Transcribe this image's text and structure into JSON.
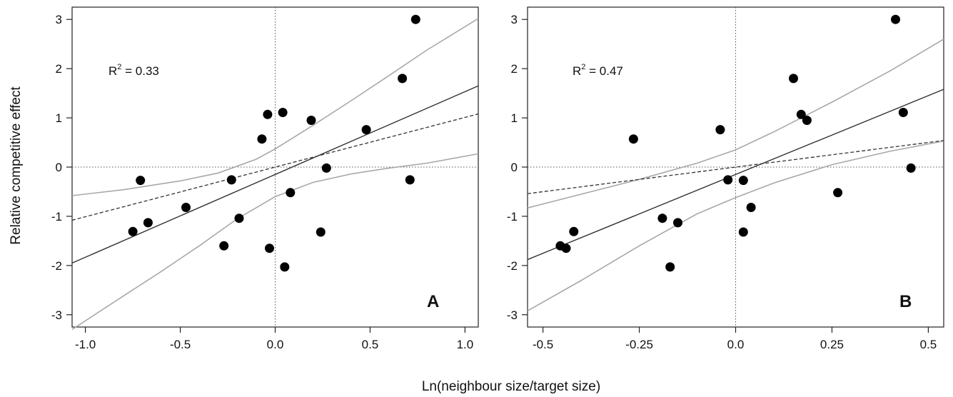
{
  "figure": {
    "ylabel": "Relative competitive effect",
    "xlabel": "Ln(neighbour size/target size)"
  },
  "chart_data": [
    {
      "type": "scatter",
      "panel": "A",
      "r2_label": "R",
      "r2_sup": "2",
      "r2_value": " = 0.33",
      "xlim": [
        -1.07,
        1.07
      ],
      "ylim": [
        -3.25,
        3.25
      ],
      "xticks": [
        -1.0,
        -0.5,
        0.0,
        0.5,
        1.0
      ],
      "xtick_labels": [
        "-1.0",
        "-0.5",
        "0.0",
        "0.5",
        "1.0"
      ],
      "yticks": [
        -3,
        -2,
        -1,
        0,
        1,
        2,
        3
      ],
      "ytick_labels": [
        "-3",
        "-2",
        "-1",
        "0",
        "1",
        "2",
        "3"
      ],
      "x": [
        -0.75,
        -0.71,
        -0.67,
        -0.47,
        -0.27,
        -0.23,
        -0.19,
        -0.07,
        -0.04,
        -0.03,
        0.04,
        0.05,
        0.08,
        0.19,
        0.24,
        0.27,
        0.48,
        0.67,
        0.71,
        0.74
      ],
      "y": [
        -1.31,
        -0.27,
        -1.13,
        -0.82,
        -1.6,
        -0.26,
        -1.04,
        0.57,
        1.07,
        -1.65,
        1.11,
        -2.03,
        -0.52,
        0.95,
        -1.32,
        -0.02,
        0.76,
        1.8,
        -0.26,
        3.0
      ],
      "fit_line": {
        "x": [
          -1.07,
          1.07
        ],
        "y": [
          -1.95,
          1.65
        ]
      },
      "reference_line": {
        "x": [
          -1.07,
          1.07
        ],
        "y": [
          -1.08,
          1.08
        ]
      },
      "ci_upper": {
        "x": [
          -1.07,
          -0.8,
          -0.5,
          -0.3,
          -0.1,
          0.0,
          0.2,
          0.4,
          0.6,
          0.8,
          1.07
        ],
        "y": [
          -0.58,
          -0.46,
          -0.28,
          -0.12,
          0.16,
          0.37,
          0.85,
          1.35,
          1.86,
          2.38,
          3.02
        ]
      },
      "ci_lower": {
        "x": [
          -1.07,
          -0.8,
          -0.6,
          -0.4,
          -0.2,
          0.0,
          0.2,
          0.4,
          0.6,
          0.8,
          1.07
        ],
        "y": [
          -3.3,
          -2.62,
          -2.12,
          -1.6,
          -1.05,
          -0.6,
          -0.31,
          -0.14,
          -0.02,
          0.08,
          0.27
        ]
      }
    },
    {
      "type": "scatter",
      "panel": "B",
      "r2_label": "R",
      "r2_sup": "2",
      "r2_value": " = 0.47",
      "xlim": [
        -0.54,
        0.54
      ],
      "ylim": [
        -3.25,
        3.25
      ],
      "xticks": [
        -0.5,
        -0.25,
        0.0,
        0.25,
        0.5
      ],
      "xtick_labels": [
        "-0.5",
        "-0.25",
        "0.0",
        "0.25",
        "0.5"
      ],
      "yticks": [
        -3,
        -2,
        -1,
        0,
        1,
        2,
        3
      ],
      "ytick_labels": [
        "-3",
        "-2",
        "-1",
        "0",
        "1",
        "2",
        "3"
      ],
      "x": [
        -0.455,
        -0.44,
        -0.42,
        -0.265,
        -0.19,
        -0.17,
        -0.15,
        -0.04,
        -0.02,
        0.02,
        0.02,
        0.04,
        0.15,
        0.17,
        0.185,
        0.265,
        0.415,
        0.435,
        0.455
      ],
      "y": [
        -1.6,
        -1.65,
        -1.31,
        0.57,
        -1.04,
        -2.03,
        -1.13,
        0.76,
        -0.26,
        -0.27,
        -1.32,
        -0.82,
        1.8,
        1.07,
        0.95,
        -0.52,
        3.0,
        1.11,
        -0.02
      ],
      "fit_line": {
        "x": [
          -0.54,
          0.54
        ],
        "y": [
          -1.88,
          1.58
        ]
      },
      "reference_line": {
        "x": [
          -0.54,
          0.54
        ],
        "y": [
          -0.54,
          0.54
        ]
      },
      "ci_upper": {
        "x": [
          -0.54,
          -0.4,
          -0.25,
          -0.1,
          0.0,
          0.1,
          0.25,
          0.4,
          0.54
        ],
        "y": [
          -0.83,
          -0.55,
          -0.25,
          0.08,
          0.35,
          0.72,
          1.32,
          1.95,
          2.6
        ]
      },
      "ci_lower": {
        "x": [
          -0.54,
          -0.4,
          -0.25,
          -0.1,
          0.0,
          0.1,
          0.25,
          0.4,
          0.54
        ],
        "y": [
          -2.92,
          -2.3,
          -1.6,
          -0.95,
          -0.62,
          -0.32,
          0.05,
          0.32,
          0.53
        ]
      }
    }
  ]
}
